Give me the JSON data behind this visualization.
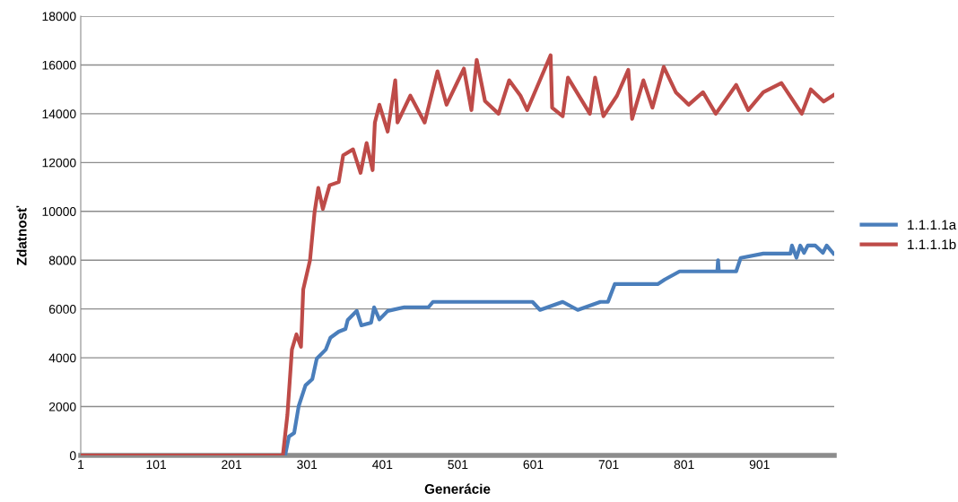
{
  "chart_data": {
    "type": "line",
    "xlabel": "Generácie",
    "ylabel": "Zdatnosť",
    "xlim": [
      1,
      1000
    ],
    "xticks": [
      1,
      101,
      201,
      301,
      401,
      501,
      601,
      701,
      801,
      901
    ],
    "ylim": [
      0,
      18000
    ],
    "yticks": [
      0,
      2000,
      4000,
      6000,
      8000,
      10000,
      12000,
      14000,
      16000,
      18000
    ],
    "grid": "y",
    "legend": "right",
    "marker": "none",
    "line_style": "solid",
    "series": [
      {
        "name": "1.1.1.1a",
        "color": "#4a7ebb",
        "x": [
          1,
          272,
          277,
          284,
          290,
          299,
          308,
          314,
          326,
          332,
          343,
          352,
          355,
          367,
          373,
          386,
          390,
          397,
          408,
          430,
          462,
          468,
          600,
          610,
          640,
          660,
          690,
          700,
          709,
          766,
          775,
          795,
          845,
          846,
          847,
          870,
          876,
          906,
          942,
          944,
          950,
          955,
          960,
          965,
          975,
          985,
          990,
          999
        ],
        "values": [
          0,
          0,
          770,
          920,
          2020,
          2870,
          3120,
          3970,
          4340,
          4820,
          5070,
          5180,
          5550,
          5920,
          5330,
          5440,
          6070,
          5570,
          5920,
          6070,
          6070,
          6290,
          6290,
          5960,
          6290,
          5960,
          6290,
          6290,
          7020,
          7020,
          7200,
          7540,
          7540,
          8000,
          7540,
          7540,
          8090,
          8270,
          8270,
          8600,
          8100,
          8600,
          8300,
          8600,
          8600,
          8300,
          8600,
          8270
        ]
      },
      {
        "name": "1.1.1.1b",
        "color": "#be4b48",
        "x": [
          1,
          269,
          275,
          281,
          287,
          293,
          296,
          305,
          311,
          316,
          322,
          331,
          343,
          349,
          362,
          372,
          380,
          388,
          391,
          397,
          408,
          418,
          421,
          438,
          457,
          474,
          486,
          509,
          519,
          526,
          537,
          555,
          569,
          584,
          593,
          624,
          626,
          640,
          647,
          676,
          683,
          694,
          712,
          727,
          732,
          747,
          759,
          774,
          790,
          807,
          826,
          843,
          870,
          886,
          906,
          930,
          957,
          969,
          986,
          999
        ],
        "values": [
          0,
          0,
          1650,
          4340,
          4960,
          4450,
          6800,
          8000,
          9960,
          10960,
          10100,
          11070,
          11200,
          12300,
          12540,
          11580,
          12800,
          11690,
          13640,
          14370,
          13270,
          15370,
          13640,
          14740,
          13640,
          15740,
          14370,
          15850,
          14150,
          16210,
          14520,
          14000,
          15370,
          14740,
          14150,
          16400,
          14250,
          13900,
          15480,
          14000,
          15480,
          13900,
          14740,
          15800,
          13790,
          15370,
          14250,
          15920,
          14880,
          14370,
          14880,
          14000,
          15180,
          14150,
          14880,
          15260,
          14000,
          15000,
          14500,
          14760
        ]
      }
    ]
  }
}
